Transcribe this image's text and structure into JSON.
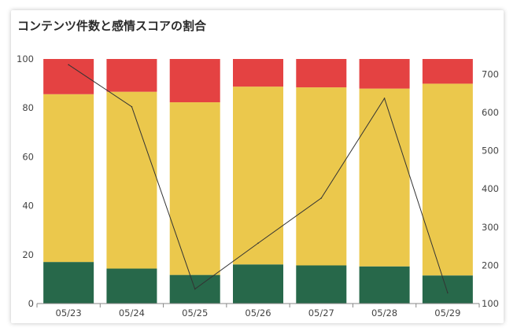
{
  "title": "コンテンツ件数と感情スコアの割合",
  "chart_data": {
    "type": "bar",
    "stacked": true,
    "title": "コンテンツ件数と感情スコアの割合",
    "categories": [
      "05/23",
      "05/24",
      "05/25",
      "05/26",
      "05/27",
      "05/28",
      "05/29"
    ],
    "series": [
      {
        "color": "#27684a",
        "values": [
          17.0,
          14.3,
          11.7,
          16.0,
          15.6,
          15.2,
          11.5
        ]
      },
      {
        "color": "#ebc84c",
        "values": [
          68.6,
          72.3,
          70.6,
          72.7,
          72.8,
          72.7,
          78.4
        ]
      },
      {
        "color": "#e44242",
        "values": [
          14.4,
          13.4,
          17.7,
          11.3,
          11.6,
          12.1,
          10.1
        ]
      }
    ],
    "line": {
      "color": "#333333",
      "values": [
        725,
        615,
        138,
        258,
        376,
        637,
        128
      ]
    },
    "yticks_left": [
      0,
      20,
      40,
      60,
      80,
      100
    ],
    "ylim_left": [
      0,
      100
    ],
    "yticks_right": [
      100,
      200,
      300,
      400,
      500,
      600,
      700
    ],
    "ylim_right": [
      100,
      740
    ],
    "grid": false,
    "legend": "none"
  }
}
